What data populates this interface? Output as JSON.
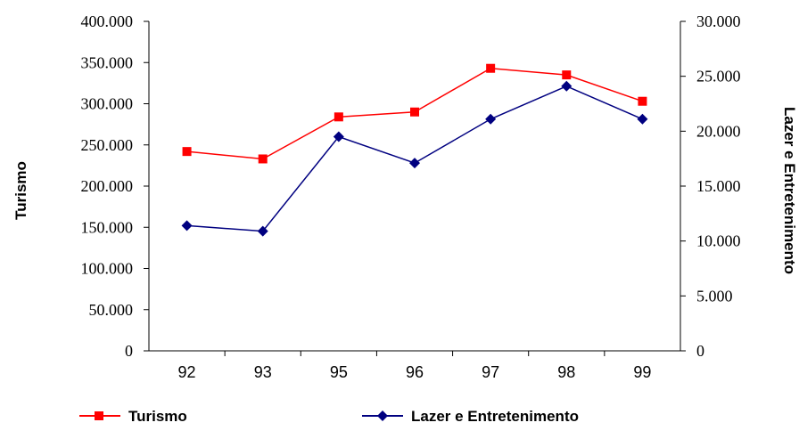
{
  "chart_data": {
    "type": "line",
    "categories": [
      "92",
      "93",
      "95",
      "96",
      "97",
      "98",
      "99"
    ],
    "series": [
      {
        "name": "Turismo",
        "axis": "left",
        "color": "#ff0000",
        "marker": "square",
        "values": [
          242000,
          233000,
          284000,
          290000,
          343000,
          335000,
          303000
        ]
      },
      {
        "name": "Lazer e Entretenimento",
        "axis": "right",
        "color": "#000080",
        "marker": "diamond",
        "values": [
          11400,
          10900,
          19500,
          17100,
          21100,
          24100,
          21100
        ]
      }
    ],
    "ylabel": "Turismo",
    "y2label": "Lazer e Entretenimento",
    "ylim": [
      0,
      400000
    ],
    "y2lim": [
      0,
      30000
    ],
    "yticks": [
      0,
      50000,
      100000,
      150000,
      200000,
      250000,
      300000,
      350000,
      400000
    ],
    "y2ticks": [
      0,
      5000,
      10000,
      15000,
      20000,
      25000,
      30000
    ],
    "ytick_labels": [
      "0",
      "50.000",
      "100.000",
      "150.000",
      "200.000",
      "250.000",
      "300.000",
      "350.000",
      "400.000"
    ],
    "y2tick_labels": [
      "0",
      "5.000",
      "10.000",
      "15.000",
      "20.000",
      "25.000",
      "30.000"
    ],
    "grid": false,
    "legend": "bottom"
  }
}
